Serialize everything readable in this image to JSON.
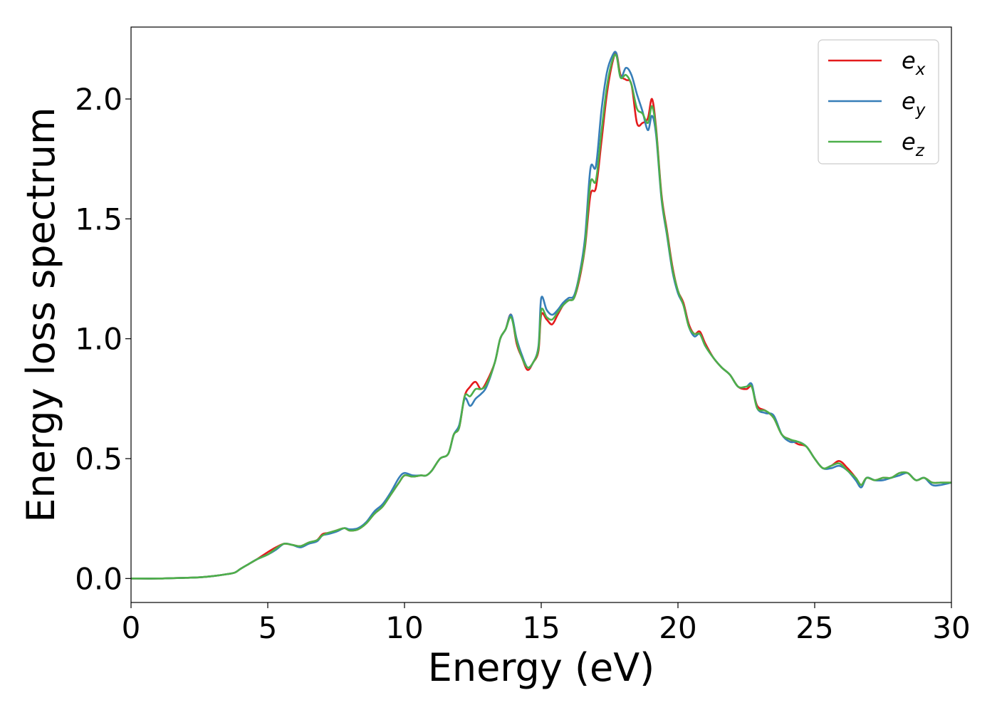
{
  "chart_data": {
    "type": "line",
    "title": "",
    "xlabel": "Energy (eV)",
    "ylabel": "Energy loss spectrum",
    "xlim": [
      0,
      30
    ],
    "ylim": [
      -0.1,
      2.3
    ],
    "xticks": [
      0,
      5,
      10,
      15,
      20,
      25,
      30
    ],
    "xtick_labels": [
      "0",
      "5",
      "10",
      "15",
      "20",
      "25",
      "30"
    ],
    "yticks": [
      0.0,
      0.5,
      1.0,
      1.5,
      2.0
    ],
    "ytick_labels": [
      "0.0",
      "0.5",
      "1.0",
      "1.5",
      "2.0"
    ],
    "grid": false,
    "legend_position": "top-right",
    "series": [
      {
        "name": "e_x",
        "label_base": "e",
        "label_sub": "x",
        "color": "#e41a1c",
        "x": [
          0,
          1,
          2,
          2.5,
          3,
          3.5,
          3.8,
          4,
          4.3,
          4.6,
          5,
          5.3,
          5.6,
          5.9,
          6.2,
          6.5,
          6.8,
          7,
          7.2,
          7.5,
          7.8,
          8,
          8.3,
          8.6,
          8.9,
          9.2,
          9.5,
          9.8,
          10,
          10.3,
          10.6,
          10.8,
          11,
          11.3,
          11.6,
          11.8,
          12,
          12.2,
          12.4,
          12.6,
          12.8,
          13,
          13.3,
          13.5,
          13.7,
          13.9,
          14.1,
          14.3,
          14.5,
          14.7,
          14.9,
          15,
          15.2,
          15.4,
          15.6,
          15.8,
          16,
          16.2,
          16.4,
          16.6,
          16.8,
          17,
          17.2,
          17.4,
          17.6,
          17.75,
          17.9,
          18.1,
          18.3,
          18.5,
          18.7,
          18.9,
          19.05,
          19.2,
          19.4,
          19.6,
          19.8,
          20,
          20.2,
          20.4,
          20.6,
          20.8,
          21,
          21.3,
          21.6,
          21.9,
          22.2,
          22.5,
          22.7,
          22.9,
          23.2,
          23.5,
          23.8,
          24.1,
          24.4,
          24.7,
          25,
          25.3,
          25.6,
          25.9,
          26.2,
          26.5,
          26.7,
          26.9,
          27.2,
          27.5,
          27.8,
          28.1,
          28.4,
          28.7,
          29,
          29.3,
          29.6,
          30
        ],
        "y": [
          0.0,
          0.0,
          0.003,
          0.005,
          0.01,
          0.018,
          0.025,
          0.04,
          0.06,
          0.08,
          0.11,
          0.13,
          0.145,
          0.14,
          0.135,
          0.15,
          0.16,
          0.185,
          0.19,
          0.2,
          0.21,
          0.2,
          0.205,
          0.23,
          0.27,
          0.3,
          0.35,
          0.4,
          0.43,
          0.425,
          0.43,
          0.43,
          0.45,
          0.5,
          0.52,
          0.6,
          0.63,
          0.76,
          0.8,
          0.82,
          0.79,
          0.82,
          0.9,
          1.0,
          1.04,
          1.1,
          0.98,
          0.92,
          0.87,
          0.9,
          0.95,
          1.1,
          1.08,
          1.06,
          1.1,
          1.14,
          1.16,
          1.17,
          1.25,
          1.38,
          1.6,
          1.63,
          1.82,
          2.02,
          2.15,
          2.19,
          2.1,
          2.08,
          2.06,
          1.9,
          1.9,
          1.92,
          2.0,
          1.88,
          1.6,
          1.45,
          1.3,
          1.2,
          1.15,
          1.06,
          1.02,
          1.03,
          0.98,
          0.92,
          0.88,
          0.85,
          0.8,
          0.79,
          0.8,
          0.72,
          0.7,
          0.67,
          0.6,
          0.58,
          0.56,
          0.55,
          0.5,
          0.46,
          0.47,
          0.49,
          0.46,
          0.42,
          0.39,
          0.42,
          0.41,
          0.42,
          0.42,
          0.44,
          0.44,
          0.41,
          0.42,
          0.4,
          0.4,
          0.4
        ]
      },
      {
        "name": "e_y",
        "label_base": "e",
        "label_sub": "y",
        "color": "#377eb8",
        "x": [
          0,
          1,
          2,
          2.5,
          3,
          3.5,
          3.8,
          4,
          4.3,
          4.6,
          5,
          5.3,
          5.6,
          5.9,
          6.2,
          6.5,
          6.8,
          7,
          7.2,
          7.5,
          7.8,
          8,
          8.3,
          8.6,
          8.9,
          9.2,
          9.5,
          9.8,
          10,
          10.3,
          10.6,
          10.8,
          11,
          11.3,
          11.6,
          11.8,
          12,
          12.2,
          12.4,
          12.6,
          12.8,
          13,
          13.3,
          13.5,
          13.7,
          13.9,
          14.1,
          14.3,
          14.5,
          14.7,
          14.9,
          15,
          15.2,
          15.4,
          15.6,
          15.8,
          16,
          16.2,
          16.4,
          16.6,
          16.8,
          17,
          17.2,
          17.4,
          17.6,
          17.75,
          17.9,
          18.1,
          18.3,
          18.5,
          18.7,
          18.9,
          19.05,
          19.2,
          19.4,
          19.6,
          19.8,
          20,
          20.2,
          20.4,
          20.6,
          20.8,
          21,
          21.3,
          21.6,
          21.9,
          22.2,
          22.5,
          22.7,
          22.9,
          23.2,
          23.5,
          23.8,
          24.1,
          24.4,
          24.7,
          25,
          25.3,
          25.6,
          25.9,
          26.2,
          26.5,
          26.7,
          26.9,
          27.2,
          27.5,
          27.8,
          28.1,
          28.4,
          28.7,
          29,
          29.3,
          29.6,
          30
        ],
        "y": [
          0.0,
          0.0,
          0.003,
          0.005,
          0.01,
          0.018,
          0.025,
          0.04,
          0.06,
          0.08,
          0.1,
          0.12,
          0.145,
          0.14,
          0.13,
          0.145,
          0.155,
          0.18,
          0.185,
          0.195,
          0.21,
          0.205,
          0.21,
          0.235,
          0.28,
          0.31,
          0.36,
          0.42,
          0.44,
          0.43,
          0.43,
          0.43,
          0.45,
          0.5,
          0.52,
          0.6,
          0.64,
          0.75,
          0.72,
          0.75,
          0.77,
          0.8,
          0.9,
          1.0,
          1.04,
          1.1,
          1.0,
          0.93,
          0.88,
          0.9,
          0.97,
          1.17,
          1.12,
          1.1,
          1.12,
          1.15,
          1.17,
          1.18,
          1.27,
          1.42,
          1.71,
          1.72,
          1.95,
          2.11,
          2.18,
          2.19,
          2.09,
          2.13,
          2.1,
          2.02,
          1.95,
          1.87,
          1.93,
          1.85,
          1.58,
          1.43,
          1.28,
          1.19,
          1.14,
          1.05,
          1.01,
          1.02,
          0.97,
          0.92,
          0.88,
          0.85,
          0.8,
          0.8,
          0.81,
          0.71,
          0.69,
          0.68,
          0.6,
          0.57,
          0.57,
          0.55,
          0.5,
          0.46,
          0.46,
          0.47,
          0.45,
          0.41,
          0.38,
          0.42,
          0.41,
          0.41,
          0.42,
          0.43,
          0.44,
          0.41,
          0.42,
          0.39,
          0.39,
          0.4
        ]
      },
      {
        "name": "e_z",
        "label_base": "e",
        "label_sub": "z",
        "color": "#4daf4a",
        "x": [
          0,
          1,
          2,
          2.5,
          3,
          3.5,
          3.8,
          4,
          4.3,
          4.6,
          5,
          5.3,
          5.6,
          5.9,
          6.2,
          6.5,
          6.8,
          7,
          7.2,
          7.5,
          7.8,
          8,
          8.3,
          8.6,
          8.9,
          9.2,
          9.5,
          9.8,
          10,
          10.3,
          10.6,
          10.8,
          11,
          11.3,
          11.6,
          11.8,
          12,
          12.2,
          12.4,
          12.6,
          12.8,
          13,
          13.3,
          13.5,
          13.7,
          13.9,
          14.1,
          14.3,
          14.5,
          14.7,
          14.9,
          15,
          15.2,
          15.4,
          15.6,
          15.8,
          16,
          16.2,
          16.4,
          16.6,
          16.8,
          17,
          17.2,
          17.4,
          17.6,
          17.75,
          17.9,
          18.1,
          18.3,
          18.5,
          18.7,
          18.9,
          19.05,
          19.2,
          19.4,
          19.6,
          19.8,
          20,
          20.2,
          20.4,
          20.6,
          20.8,
          21,
          21.3,
          21.6,
          21.9,
          22.2,
          22.5,
          22.7,
          22.9,
          23.2,
          23.5,
          23.8,
          24.1,
          24.4,
          24.7,
          25,
          25.3,
          25.6,
          25.9,
          26.2,
          26.5,
          26.7,
          26.9,
          27.2,
          27.5,
          27.8,
          28.1,
          28.4,
          28.7,
          29,
          29.3,
          29.6,
          30
        ],
        "y": [
          0.0,
          0.0,
          0.003,
          0.005,
          0.01,
          0.018,
          0.025,
          0.04,
          0.06,
          0.08,
          0.1,
          0.125,
          0.145,
          0.14,
          0.135,
          0.15,
          0.16,
          0.18,
          0.19,
          0.2,
          0.21,
          0.2,
          0.205,
          0.23,
          0.27,
          0.3,
          0.35,
          0.4,
          0.43,
          0.425,
          0.43,
          0.43,
          0.45,
          0.5,
          0.52,
          0.6,
          0.63,
          0.76,
          0.76,
          0.79,
          0.79,
          0.81,
          0.9,
          1.0,
          1.04,
          1.09,
          0.99,
          0.92,
          0.88,
          0.9,
          0.96,
          1.12,
          1.09,
          1.08,
          1.11,
          1.14,
          1.16,
          1.17,
          1.26,
          1.39,
          1.65,
          1.66,
          1.86,
          2.05,
          2.16,
          2.18,
          2.09,
          2.1,
          2.06,
          1.96,
          1.94,
          1.9,
          1.97,
          1.87,
          1.59,
          1.44,
          1.29,
          1.2,
          1.14,
          1.05,
          1.02,
          1.02,
          0.97,
          0.92,
          0.88,
          0.85,
          0.8,
          0.8,
          0.8,
          0.71,
          0.7,
          0.67,
          0.6,
          0.58,
          0.57,
          0.55,
          0.5,
          0.46,
          0.47,
          0.48,
          0.45,
          0.42,
          0.39,
          0.42,
          0.41,
          0.42,
          0.42,
          0.44,
          0.44,
          0.41,
          0.42,
          0.4,
          0.4,
          0.4
        ]
      }
    ]
  }
}
